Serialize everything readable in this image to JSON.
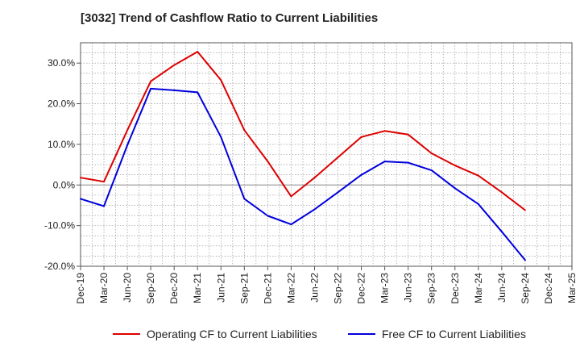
{
  "chart_data": {
    "type": "line",
    "title": "[3032]  Trend of Cashflow Ratio to Current Liabilities",
    "xlabel": "",
    "ylabel": "",
    "ylim": [
      -20,
      35
    ],
    "y_ticks": [
      "-20.0%",
      "-10.0%",
      "0.0%",
      "10.0%",
      "20.0%",
      "30.0%"
    ],
    "y_tick_values": [
      -20,
      -10,
      0,
      10,
      20,
      30
    ],
    "x": [
      "Dec-19",
      "Mar-20",
      "Jun-20",
      "Sep-20",
      "Dec-20",
      "Mar-21",
      "Jun-21",
      "Sep-21",
      "Dec-21",
      "Mar-22",
      "Jun-22",
      "Sep-22",
      "Dec-22",
      "Mar-23",
      "Jun-23",
      "Sep-23",
      "Dec-23",
      "Mar-24",
      "Jun-24",
      "Sep-24",
      "Dec-24",
      "Mar-25"
    ],
    "x_labels": [
      "Dec-19",
      "Mar-20",
      "Jun-20",
      "Sep-20",
      "Dec-20",
      "Mar-21",
      "Jun-21",
      "Sep-21",
      "Dec-21",
      "Mar-22",
      "Jun-22",
      "Sep-22",
      "Dec-22",
      "Mar-23",
      "Jun-23",
      "Sep-23",
      "Dec-23",
      "Mar-24",
      "Jun-24",
      "Sep-24",
      "Dec-24",
      "Mar-25"
    ],
    "grid": true,
    "legend_position": "bottom",
    "series": [
      {
        "name": "Operating CF to Current Liabilities",
        "color": "#dd0000",
        "values": [
          1.8,
          0.8,
          13.5,
          25.5,
          29.5,
          32.8,
          25.8,
          13.5,
          5.8,
          -2.8,
          1.8,
          6.8,
          11.8,
          13.3,
          12.4,
          7.8,
          4.8,
          2.3,
          -1.8,
          -6.2,
          null,
          null
        ]
      },
      {
        "name": "Free CF to Current Liabilities",
        "color": "#0000dd",
        "values": [
          -3.4,
          -5.2,
          9.8,
          23.7,
          23.3,
          22.8,
          11.8,
          -3.4,
          -7.6,
          -9.7,
          -6.0,
          -1.8,
          2.5,
          5.8,
          5.5,
          3.6,
          -0.8,
          -4.7,
          -11.5,
          -18.5,
          null,
          null
        ]
      }
    ]
  }
}
